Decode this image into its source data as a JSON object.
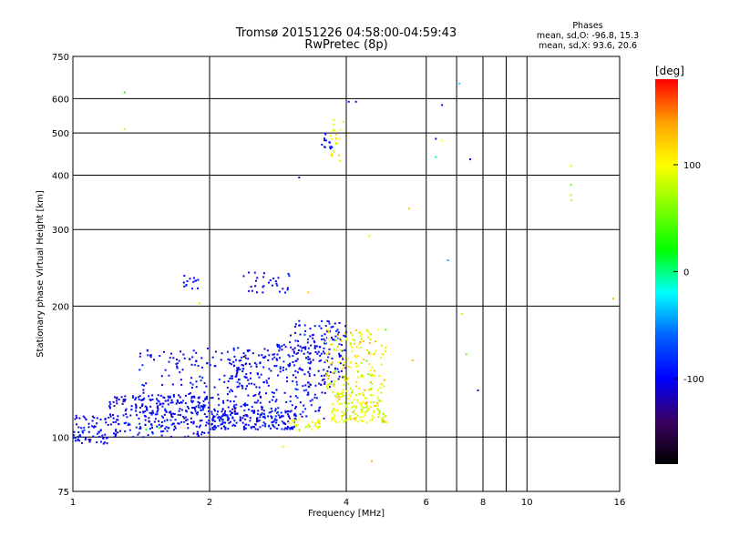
{
  "chart_data": {
    "type": "scatter",
    "title": "Tromsø 20151226 04:58:00-04:59:43",
    "subtitle": "RwPretec (8p)",
    "xlabel": "Frequency [MHz]",
    "ylabel": "Stationary phase Virtual Height [km]",
    "x_scale": "log",
    "y_scale": "log",
    "xlim": [
      1,
      16
    ],
    "ylim": [
      75,
      750
    ],
    "x_ticks": [
      1,
      2,
      4,
      6,
      8,
      10,
      16
    ],
    "y_ticks": [
      75,
      100,
      200,
      300,
      400,
      500,
      600,
      750
    ],
    "x_gridlines": [
      1,
      2,
      4,
      6,
      7,
      8,
      9,
      10,
      16
    ],
    "y_gridlines": [
      75,
      100,
      200,
      300,
      400,
      500,
      600,
      750
    ],
    "grid": true,
    "colorbar": {
      "label": "[deg]",
      "range": [
        -180,
        180
      ],
      "ticks": [
        -100,
        0,
        100
      ],
      "colormap": [
        "#000000",
        "#3a0060",
        "#0000ff",
        "#0060ff",
        "#00ffff",
        "#00ff00",
        "#80ff00",
        "#ffff00",
        "#ffa000",
        "#ff0000"
      ]
    },
    "annotation": {
      "heading": "Phases",
      "line1": "mean, sd,O: -96.8, 15.3",
      "line2": "mean, sd,X:  93.6, 20.6"
    },
    "series": [
      {
        "clusters": [
          {
            "xrange": [
              1.0,
              1.2
            ],
            "yrange": [
              96,
              112
            ],
            "count": 70,
            "phase_mean": -100,
            "phase_sd": 12
          },
          {
            "xrange": [
              1.2,
              2.0
            ],
            "yrange": [
              100,
              125
            ],
            "count": 260,
            "phase_mean": -100,
            "phase_sd": 12
          },
          {
            "xrange": [
              1.4,
              2.6
            ],
            "yrange": [
              108,
              160
            ],
            "count": 200,
            "phase_mean": -100,
            "phase_sd": 12
          },
          {
            "xrange": [
              2.0,
              3.1
            ],
            "yrange": [
              104,
              115
            ],
            "count": 180,
            "phase_mean": -98,
            "phase_sd": 12
          },
          {
            "xrange": [
              2.2,
              3.6
            ],
            "yrange": [
              110,
              165
            ],
            "count": 230,
            "phase_mean": -100,
            "phase_sd": 12
          },
          {
            "xrange": [
              3.0,
              4.0
            ],
            "yrange": [
              130,
              185
            ],
            "count": 150,
            "phase_mean": -100,
            "phase_sd": 12
          },
          {
            "xrange": [
              3.7,
              4.9
            ],
            "yrange": [
              108,
              128
            ],
            "count": 150,
            "phase_mean": 95,
            "phase_sd": 18
          },
          {
            "xrange": [
              3.6,
              4.9
            ],
            "yrange": [
              128,
              178
            ],
            "count": 150,
            "phase_mean": 100,
            "phase_sd": 18
          },
          {
            "xrange": [
              3.0,
              3.5
            ],
            "yrange": [
              103,
              110
            ],
            "count": 30,
            "phase_mean": 90,
            "phase_sd": 15
          },
          {
            "xrange": [
              1.75,
              1.9
            ],
            "yrange": [
              218,
              235
            ],
            "count": 14,
            "phase_mean": -100,
            "phase_sd": 10
          },
          {
            "xrange": [
              2.35,
              3.0
            ],
            "yrange": [
              213,
              240
            ],
            "count": 30,
            "phase_mean": -100,
            "phase_sd": 10
          },
          {
            "xrange": [
              3.5,
              3.72
            ],
            "yrange": [
              455,
              510
            ],
            "count": 14,
            "phase_mean": -100,
            "phase_sd": 10
          },
          {
            "xrange": [
              3.68,
              3.95
            ],
            "yrange": [
              430,
              540
            ],
            "count": 22,
            "phase_mean": 100,
            "phase_sd": 15
          }
        ],
        "isolated": [
          {
            "x": 1.3,
            "y": 620,
            "phase": 30
          },
          {
            "x": 1.3,
            "y": 510,
            "phase": 110
          },
          {
            "x": 1.55,
            "y": 105,
            "phase": 30
          },
          {
            "x": 1.45,
            "y": 104,
            "phase": 10
          },
          {
            "x": 1.9,
            "y": 203,
            "phase": 110
          },
          {
            "x": 2.9,
            "y": 95,
            "phase": 110
          },
          {
            "x": 3.15,
            "y": 395,
            "phase": -110
          },
          {
            "x": 3.3,
            "y": 215,
            "phase": 120
          },
          {
            "x": 4.2,
            "y": 590,
            "phase": -110
          },
          {
            "x": 4.05,
            "y": 590,
            "phase": -100
          },
          {
            "x": 4.5,
            "y": 290,
            "phase": 110
          },
          {
            "x": 4.55,
            "y": 88,
            "phase": 130
          },
          {
            "x": 5.5,
            "y": 335,
            "phase": 120
          },
          {
            "x": 5.6,
            "y": 150,
            "phase": 130
          },
          {
            "x": 6.3,
            "y": 485,
            "phase": -110
          },
          {
            "x": 6.3,
            "y": 440,
            "phase": -10
          },
          {
            "x": 6.5,
            "y": 580,
            "phase": -110
          },
          {
            "x": 6.5,
            "y": 480,
            "phase": 100
          },
          {
            "x": 6.7,
            "y": 255,
            "phase": -40
          },
          {
            "x": 7.1,
            "y": 650,
            "phase": -30
          },
          {
            "x": 7.2,
            "y": 192,
            "phase": 110
          },
          {
            "x": 7.35,
            "y": 155,
            "phase": 50
          },
          {
            "x": 7.5,
            "y": 435,
            "phase": -100
          },
          {
            "x": 7.8,
            "y": 128,
            "phase": -120
          },
          {
            "x": 12.5,
            "y": 420,
            "phase": 110
          },
          {
            "x": 12.5,
            "y": 380,
            "phase": 50
          },
          {
            "x": 12.5,
            "y": 360,
            "phase": 70
          },
          {
            "x": 12.55,
            "y": 350,
            "phase": 80
          },
          {
            "x": 15.5,
            "y": 208,
            "phase": 130
          }
        ]
      }
    ]
  }
}
